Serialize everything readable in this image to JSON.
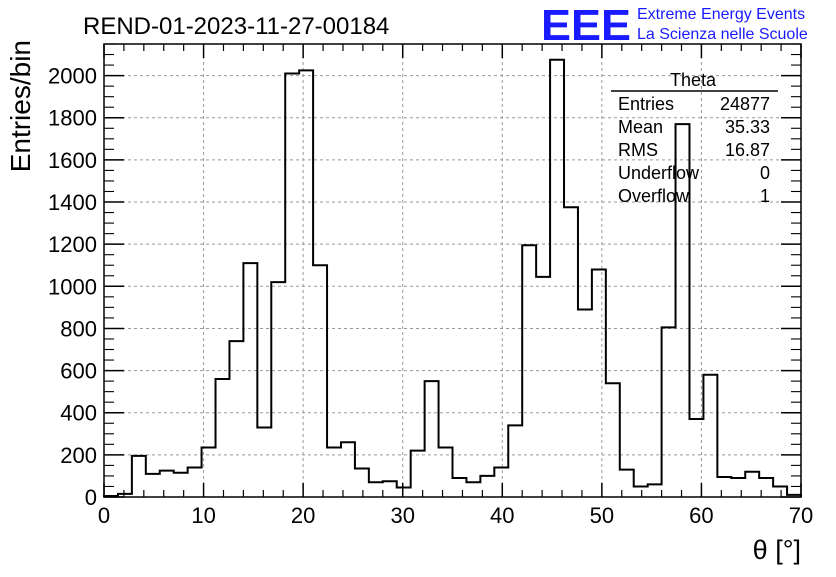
{
  "chart_data": {
    "type": "histogram",
    "title": "REND-01-2023-11-27-00184",
    "xlabel": "θ [°]",
    "ylabel": "Entries/bin",
    "xlim": [
      0,
      70
    ],
    "ylim": [
      0,
      2150
    ],
    "grid": true,
    "bin_width": 1.4,
    "bin_edges_start": 0,
    "values": [
      5,
      15,
      195,
      110,
      125,
      115,
      140,
      235,
      560,
      740,
      1110,
      330,
      1020,
      2010,
      2025,
      1100,
      235,
      260,
      135,
      70,
      75,
      45,
      220,
      550,
      235,
      90,
      70,
      100,
      140,
      340,
      1195,
      1045,
      2075,
      1375,
      890,
      1080,
      540,
      130,
      50,
      60,
      805,
      1770,
      370,
      580,
      95,
      90,
      120,
      90,
      50,
      10
    ],
    "xticks": [
      "0",
      "10",
      "20",
      "30",
      "40",
      "50",
      "60",
      "70"
    ],
    "yticks": [
      "0",
      "200",
      "400",
      "600",
      "800",
      "1000",
      "1200",
      "1400",
      "1600",
      "1800",
      "2000"
    ],
    "stats": {
      "title": "Theta",
      "rows": [
        {
          "label": "Entries",
          "value": "24877"
        },
        {
          "label": "Mean",
          "value": "35.33"
        },
        {
          "label": "RMS",
          "value": "16.87"
        },
        {
          "label": "Underflow",
          "value": "0"
        },
        {
          "label": "Overflow",
          "value": "1"
        }
      ]
    }
  },
  "logo": {
    "mark": "EEE",
    "line1": "Extreme Energy Events",
    "line2": "La Scienza nelle Scuole",
    "color": "#1a1aff"
  }
}
